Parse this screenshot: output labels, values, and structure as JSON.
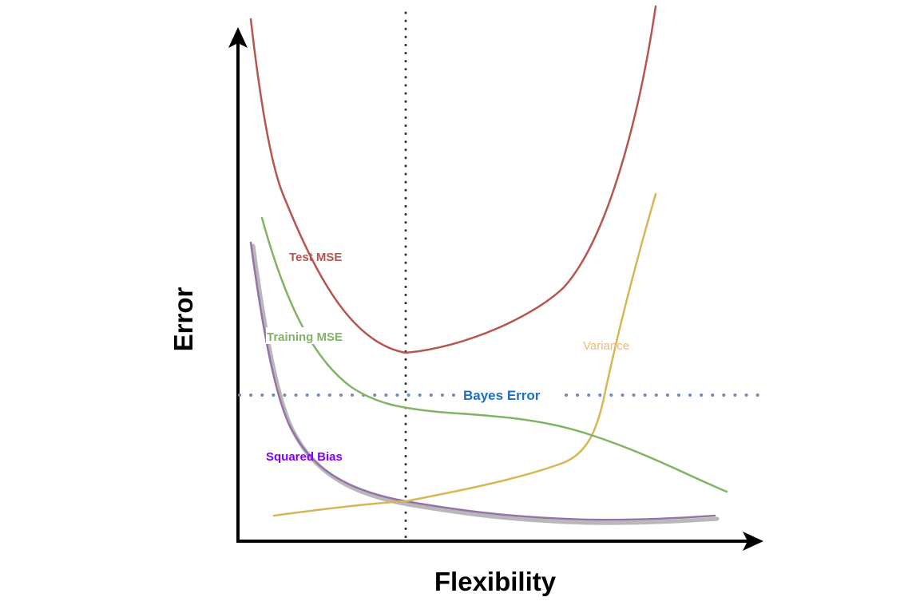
{
  "axes": {
    "x_title": "Flexibility",
    "y_title": "Error",
    "color": "#000000"
  },
  "curves": {
    "test_mse": {
      "label": "Test MSE",
      "color": "#b85450"
    },
    "training_mse": {
      "label": "Training MSE",
      "color": "#82b366"
    },
    "squared_bias": {
      "label": "Squared Bias",
      "color": "#9673a6",
      "label_color": "#7f00ff"
    },
    "variance": {
      "label": "Variance",
      "color": "#d6b656",
      "label_color": "#f5b66e"
    }
  },
  "bayes_error": {
    "label": "Bayes Error",
    "color": "#6c8ebf",
    "label_color": "#1e6fc4"
  },
  "optimum_line": {
    "color": "#333333"
  }
}
